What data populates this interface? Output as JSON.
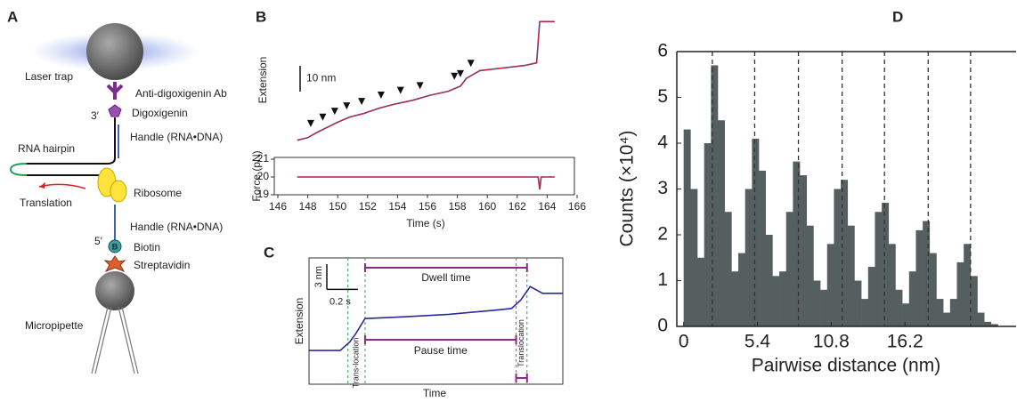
{
  "panel_labels": [
    "A",
    "B",
    "C",
    "D"
  ],
  "diagram": {
    "laser_trap": "Laser trap",
    "antibody": "Anti-digoxigenin Ab",
    "three_prime": "3′",
    "digoxigenin": "Digoxigenin",
    "handle_top": "Handle (RNA•DNA)",
    "rna_hairpin": "RNA hairpin",
    "ribosome": "Ribosome",
    "translation": "Translation",
    "handle_bottom": "Handle (RNA•DNA)",
    "five_prime": "5′",
    "biotin_symbol": "B",
    "biotin": "Biotin",
    "streptavidin": "Streptavidin",
    "micropipette": "Micropipette"
  },
  "chart_data": [
    {
      "type": "line",
      "ylabel": "Extension",
      "scale_bar": {
        "value": 10,
        "label": "10 nm"
      },
      "xlim": [
        146,
        166
      ],
      "ylim": [
        -2.5,
        49.2
      ],
      "x": [
        147.3,
        148.0,
        148.6,
        149.3,
        150.0,
        150.8,
        151.8,
        152.8,
        153.8,
        155.0,
        156.2,
        157.4,
        158.2,
        158.6,
        159.5,
        161.0,
        162.5,
        163.3,
        163.5,
        164.5
      ],
      "series": [
        {
          "color": "#3a3aa0",
          "fit_color": "#e0202a",
          "values": [
            0,
            1,
            3,
            5,
            7,
            9,
            10.5,
            12.5,
            14,
            15.5,
            17.5,
            19,
            21,
            24,
            27,
            28,
            29,
            30,
            46,
            46
          ]
        }
      ],
      "arrows_x": [
        148.2,
        149.0,
        149.8,
        150.6,
        151.6,
        152.9,
        154.2,
        155.5,
        157.8,
        158.2,
        158.9
      ]
    },
    {
      "type": "line",
      "xlabel": "Time (s)",
      "ylabel": "Force (pN)",
      "xlim": [
        146,
        166
      ],
      "xticks": [
        146,
        148,
        150,
        152,
        154,
        156,
        158,
        160,
        162,
        164,
        166
      ],
      "ylim": [
        19,
        21.1
      ],
      "yticks": [
        19,
        20,
        21
      ],
      "x": [
        147.3,
        163.4,
        163.5,
        163.6,
        164.5
      ],
      "series": [
        {
          "color": "#3a3aa0",
          "fit_color": "#e0202a",
          "values": [
            20,
            20,
            19.3,
            20,
            20
          ]
        }
      ]
    },
    {
      "type": "line",
      "xlabel": "Time",
      "ylabel": "Extension",
      "y_scale_bar": {
        "value": 3,
        "label": "3 nm"
      },
      "x_scale_bar": {
        "value": 0.2,
        "label": "0.2 s"
      },
      "xlim": [
        0,
        1.63
      ],
      "ylim": [
        -4,
        11
      ],
      "x": [
        0,
        0.2,
        0.26,
        0.3,
        0.36,
        0.6,
        0.9,
        1.2,
        1.3,
        1.36,
        1.42,
        1.5,
        1.63
      ],
      "series": [
        {
          "color": "#2a2a9a",
          "values": [
            0,
            0,
            1,
            2,
            3.8,
            4,
            4.3,
            4.8,
            5,
            6,
            7.6,
            6.8,
            6.8
          ]
        }
      ],
      "dashed_x": [
        0.25,
        0.36,
        1.33,
        1.4
      ],
      "annotations": {
        "dwell": "Dwell time",
        "pause": "Pause time",
        "translocation_1": "Trans-location",
        "translocation_2": "Translocation"
      }
    },
    {
      "type": "histogram",
      "xlabel": "Pairwise distance (nm)",
      "ylabel": "Counts (×10⁴)",
      "color": "#555f5f",
      "xlim": [
        -0.5,
        24.4
      ],
      "xticks": [
        0,
        5.4,
        10.8,
        16.2
      ],
      "ylim": [
        0,
        6
      ],
      "yticks": [
        0,
        1,
        2,
        3,
        4,
        5,
        6
      ],
      "bins": [
        0,
        0.5,
        1,
        1.5,
        2,
        2.5,
        3,
        3.5,
        4,
        4.5,
        5,
        5.5,
        6,
        6.5,
        7,
        7.5,
        8,
        8.5,
        9,
        9.5,
        10,
        10.5,
        11,
        11.5,
        12,
        12.5,
        13,
        13.5,
        14,
        14.5,
        15,
        15.5,
        16,
        16.5,
        17,
        17.5,
        18,
        18.5,
        19,
        19.5,
        20,
        20.5,
        21,
        21.5,
        22,
        22.5,
        23
      ],
      "counts": [
        4.3,
        3.0,
        1.5,
        4.0,
        5.7,
        4.5,
        2.5,
        1.2,
        1.6,
        3.0,
        4.1,
        3.4,
        2.0,
        1.1,
        1.2,
        2.5,
        3.6,
        3.3,
        2.2,
        1.0,
        0.8,
        1.8,
        3.0,
        3.2,
        2.2,
        1.0,
        0.6,
        1.3,
        2.5,
        2.7,
        1.8,
        0.8,
        0.5,
        1.2,
        2.1,
        2.3,
        1.6,
        0.6,
        0.3,
        0.6,
        1.4,
        1.8,
        1.1,
        0.3,
        0.1,
        0.05
      ],
      "dashed_x": [
        2.1,
        5.2,
        8.4,
        11.6,
        14.7,
        17.9,
        21.0
      ]
    }
  ]
}
